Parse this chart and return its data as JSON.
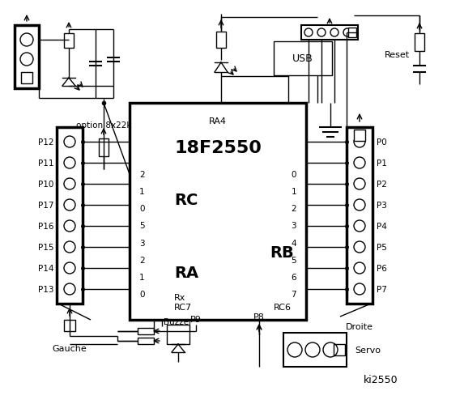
{
  "bg_color": "#ffffff",
  "title": "ki2550",
  "ic_label": "18F2550",
  "ic_ra4": "RA4",
  "ic_rc": "RC",
  "ic_ra": "RA",
  "ic_rb": "RB",
  "ic_rx": "Rx",
  "ic_rc7": "RC7",
  "ic_rc6": "RC6",
  "left_pins_nums": [
    "2",
    "1",
    "0",
    "5",
    "3",
    "2",
    "1",
    "0"
  ],
  "right_pins_nums": [
    "0",
    "1",
    "2",
    "3",
    "4",
    "5",
    "6",
    "7"
  ],
  "left_connector_labels": [
    "P12",
    "P11",
    "P10",
    "P17",
    "P16",
    "P15",
    "P14",
    "P13"
  ],
  "right_connector_labels": [
    "P0",
    "P1",
    "P2",
    "P3",
    "P4",
    "P5",
    "P6",
    "P7"
  ],
  "gauche_label": "Gauche",
  "droite_label": "Droite",
  "reset_label": "Reset",
  "usb_label": "USB",
  "buzzer_label": "Buzzer",
  "servo_label": "Servo",
  "p8_label": "P8",
  "p9_label": "P9",
  "option_label": "option 8x22k"
}
